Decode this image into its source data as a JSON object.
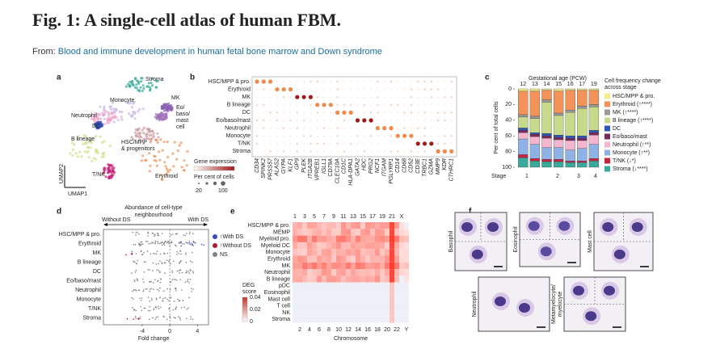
{
  "header": {
    "title": "Fig. 1: A single-cell atlas of human FBM.",
    "from_label": "From:",
    "source": "Blood and immune development in human fetal bone marrow and Down syndrome"
  },
  "panels": {
    "a": {
      "letter": "a",
      "labels": [
        [
          "Stroma"
        ],
        [
          "MK"
        ],
        [
          "Eo/",
          "baso/",
          "mast",
          "cell"
        ],
        [
          "Monocyte"
        ],
        [
          "Neutrophil"
        ],
        [
          "DC"
        ],
        [
          "B lineage"
        ],
        [
          "HSC/MPP",
          "& progenitors"
        ],
        [
          "T/NK"
        ],
        [
          "Erythroid"
        ]
      ],
      "axis_y": "UMAP2",
      "axis_x": "UMAP1"
    },
    "b": {
      "letter": "b",
      "rows": [
        "HSC/MPP & pro.",
        "Erythroid",
        "MK",
        "B lineage",
        "DC",
        "Eo/baso/mast",
        "Neutrophil",
        "Monocyte",
        "T/NK",
        "Stroma"
      ],
      "genes": [
        "CD34",
        "SPINK2",
        "PRSS57",
        "ALAS2",
        "GYPA",
        "KLF1",
        "GP9",
        "PLEK",
        "ITGA2B",
        "VPREB1",
        "IGLL1",
        "CD79A",
        "CLEC10A",
        "CD1C",
        "HLA-DPA1",
        "GATA2",
        "HDC",
        "PRG2",
        "NCF1",
        "ITGAM",
        "PGLYRP1",
        "CD14",
        "CD68",
        "CD52",
        "CD3E",
        "TRBC1",
        "GZMA",
        "MMP9",
        "KDR",
        "CTHRC1"
      ],
      "legend_title": "Gene expression",
      "size_title": "Per cent of cells",
      "size_ticks": [
        20,
        100
      ]
    },
    "c": {
      "letter": "c",
      "type": "bar",
      "stacked": true,
      "inverted": true,
      "top_title": "Gestational age (PCW)",
      "categories": [
        "12",
        "13",
        "14",
        "15",
        "16",
        "17",
        "19"
      ],
      "ylabel": "Per cent of total cells",
      "ylim": [
        0,
        100
      ],
      "yticks": [
        0,
        20,
        40,
        60,
        80,
        100
      ],
      "stage_label": "Stage",
      "stages": [
        "1",
        "2",
        "3",
        "4"
      ],
      "legend_title": [
        "Cell frequency change",
        "across stage"
      ],
      "series": [
        {
          "name": "HSC/MPP & pro.",
          "color": "#f4ee8a",
          "values": [
            3,
            3,
            2,
            3,
            2,
            2,
            2
          ]
        },
        {
          "name": "Erythroid (↑****)",
          "color": "#f3935a",
          "values": [
            30,
            32,
            12,
            28,
            25,
            20,
            18
          ]
        },
        {
          "name": "MK (↑****)",
          "color": "#9a9a9a",
          "values": [
            3,
            3,
            3,
            3,
            3,
            3,
            3
          ]
        },
        {
          "name": "B lineage (↑****)",
          "color": "#c7d98a",
          "values": [
            14,
            18,
            40,
            25,
            30,
            35,
            30
          ]
        },
        {
          "name": "DC",
          "color": "#2f57b5",
          "values": [
            3,
            2,
            3,
            3,
            3,
            3,
            3
          ]
        },
        {
          "name": "Eo/baso/mast",
          "color": "#7a2a5a",
          "values": [
            3,
            3,
            3,
            3,
            3,
            3,
            3
          ]
        },
        {
          "name": "Neutrophil (↑**)",
          "color": "#f4b6cf",
          "values": [
            8,
            10,
            12,
            10,
            12,
            10,
            12
          ]
        },
        {
          "name": "Monocyte (↑**)",
          "color": "#8fb2e6",
          "values": [
            20,
            18,
            15,
            15,
            14,
            16,
            18
          ]
        },
        {
          "name": "T/NK (↓*)",
          "color": "#c8233f",
          "values": [
            4,
            3,
            3,
            3,
            2,
            2,
            3
          ]
        },
        {
          "name": "Stroma (↓****)",
          "color": "#3aa89a",
          "values": [
            12,
            8,
            7,
            7,
            6,
            6,
            8
          ]
        }
      ]
    },
    "d": {
      "letter": "d",
      "header": [
        "Abundance of cell-type",
        "neighbourhood"
      ],
      "left": "Without DS",
      "right": "With DS",
      "rows": [
        "HSC/MPP & pro.",
        "Erythroid",
        "MK",
        "B lineage",
        "DC",
        "Eo/baso/mast",
        "Neutrophil",
        "Monocyte",
        "T/NK",
        "Stroma"
      ],
      "legend": [
        {
          "name": "↑With DS",
          "color": "#3b4cc0"
        },
        {
          "name": "↑Without DS",
          "color": "#b2182b"
        },
        {
          "name": "NS",
          "color": "#808080"
        }
      ],
      "xlabel": "Fold change",
      "xlim": [
        -9.6,
        5.6
      ],
      "xticks": [
        -4,
        0,
        4
      ]
    },
    "e": {
      "letter": "e",
      "rows": [
        "HSC/MPP & pro.",
        "MEMP",
        "Myeloid pro.",
        "Myeloid DC",
        "Monocyte",
        "Erythroid",
        "MK",
        "Neutrophil",
        "B lineage",
        "pDC",
        "Eosinophil",
        "Mast cell",
        "T cell",
        "NK",
        "Stroma"
      ],
      "top_ticks": [
        "1",
        "3",
        "5",
        "7",
        "9",
        "11",
        "13",
        "15",
        "17",
        "19",
        "21",
        "X"
      ],
      "bottom_ticks": [
        "2",
        "4",
        "6",
        "8",
        "10",
        "12",
        "14",
        "16",
        "18",
        "20",
        "22",
        "Y"
      ],
      "xlabel": "Chromosome",
      "legend_title": [
        "DEG",
        "score"
      ],
      "legend_ticks": [
        0.04,
        0.02,
        0
      ]
    },
    "f": {
      "letter": "f",
      "cells": [
        [
          "Basophil"
        ],
        [
          "Eosinophil"
        ],
        [
          "Mast cell"
        ],
        [
          "Neutrophil"
        ],
        [
          "Metamyelocyte/",
          "myelocyte"
        ]
      ]
    }
  }
}
